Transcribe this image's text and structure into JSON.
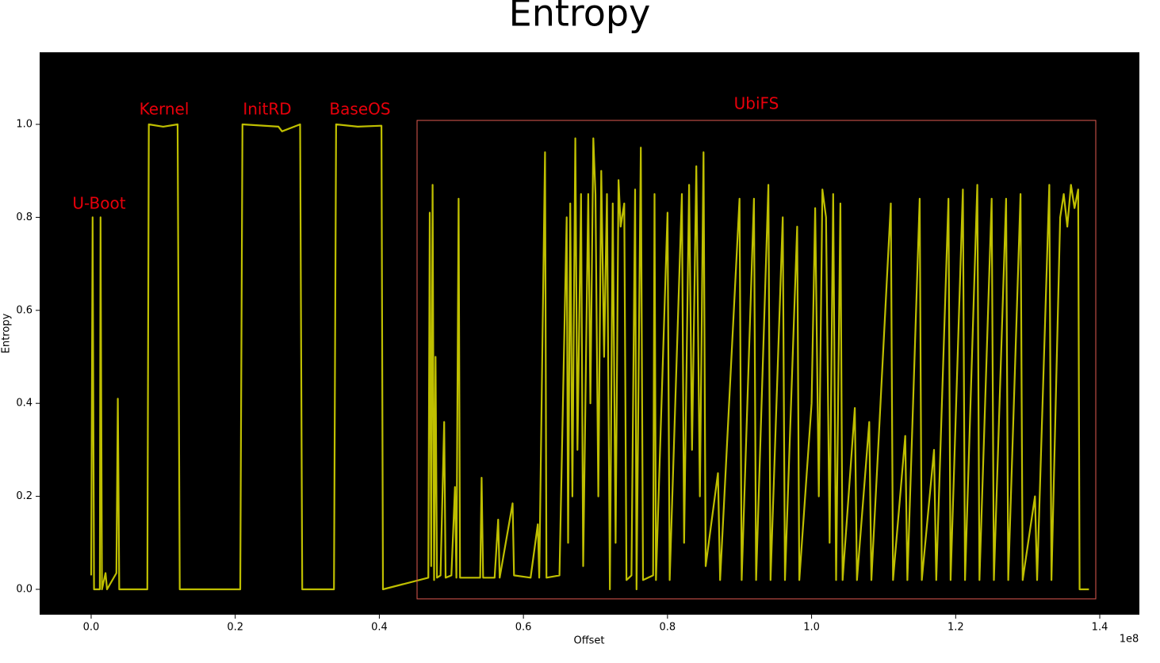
{
  "chart_data": {
    "type": "line",
    "title": "Entropy",
    "x_label": "Offset",
    "y_label": "Entropy",
    "x_offset_label": "1e8",
    "color": "#bfbf00",
    "background": "#000000",
    "annotation_color": "#e8000b",
    "annotations": [
      "U-Boot",
      "Kernel",
      "InitRD",
      "BaseOS",
      "UbiFS"
    ],
    "xlim": [
      -0.0715,
      1.455
    ],
    "ylim": [
      -0.0545,
      1.155
    ],
    "xticks": [
      {
        "value": 0,
        "label": "0.0"
      },
      0.2,
      0.4,
      0.6,
      0.8,
      {
        "value": 1,
        "label": "1.0"
      },
      1.2,
      1.4
    ],
    "yticks": [
      {
        "value": 0,
        "label": "0.0"
      },
      0.2,
      0.4,
      0.6,
      0.8,
      {
        "value": 1,
        "label": "1.0"
      }
    ],
    "x": [
      0,
      0.002,
      0.004,
      0.012,
      0.013,
      0.015,
      0.02,
      0.022,
      0.035,
      0.037,
      0.039,
      0.078,
      0.08,
      0.1,
      0.12,
      0.123,
      0.207,
      0.21,
      0.26,
      0.265,
      0.29,
      0.293,
      0.337,
      0.34,
      0.37,
      0.403,
      0.405,
      0.468,
      0.47,
      0.472,
      0.474,
      0.476,
      0.478,
      0.48,
      0.485,
      0.49,
      0.492,
      0.5,
      0.505,
      0.507,
      0.51,
      0.512,
      0.54,
      0.542,
      0.544,
      0.56,
      0.565,
      0.567,
      0.585,
      0.587,
      0.61,
      0.62,
      0.622,
      0.63,
      0.632,
      0.65,
      0.66,
      0.662,
      0.665,
      0.668,
      0.672,
      0.675,
      0.68,
      0.683,
      0.69,
      0.693,
      0.697,
      0.7,
      0.704,
      0.708,
      0.712,
      0.716,
      0.72,
      0.724,
      0.728,
      0.732,
      0.735,
      0.74,
      0.743,
      0.75,
      0.755,
      0.757,
      0.763,
      0.766,
      0.78,
      0.782,
      0.784,
      0.8,
      0.803,
      0.82,
      0.823,
      0.83,
      0.834,
      0.84,
      0.845,
      0.85,
      0.853,
      0.87,
      0.873,
      0.9,
      0.903,
      0.92,
      0.923,
      0.94,
      0.943,
      0.96,
      0.963,
      0.98,
      0.983,
      1.0,
      1.005,
      1.01,
      1.015,
      1.02,
      1.025,
      1.03,
      1.034,
      1.04,
      1.043,
      1.06,
      1.063,
      1.08,
      1.083,
      1.11,
      1.113,
      1.13,
      1.133,
      1.15,
      1.153,
      1.17,
      1.173,
      1.19,
      1.193,
      1.21,
      1.213,
      1.23,
      1.233,
      1.25,
      1.253,
      1.27,
      1.273,
      1.29,
      1.293,
      1.31,
      1.313,
      1.33,
      1.333,
      1.345,
      1.35,
      1.355,
      1.36,
      1.365,
      1.37,
      1.372,
      1.385
    ],
    "values": [
      0.03,
      0.8,
      0,
      0,
      0.8,
      0,
      0.035,
      0,
      0.035,
      0.41,
      0,
      0,
      1.0,
      0.995,
      1.0,
      0,
      0,
      1.0,
      0.995,
      0.985,
      1.0,
      0,
      0,
      1.0,
      0.995,
      0.997,
      0,
      0.025,
      0.81,
      0.05,
      0.87,
      0.02,
      0.5,
      0.025,
      0.03,
      0.36,
      0.025,
      0.03,
      0.22,
      0.025,
      0.84,
      0.025,
      0.025,
      0.24,
      0.025,
      0.025,
      0.15,
      0.025,
      0.185,
      0.03,
      0.025,
      0.14,
      0.025,
      0.94,
      0.025,
      0.03,
      0.8,
      0.1,
      0.83,
      0.2,
      0.97,
      0.3,
      0.85,
      0.05,
      0.85,
      0.4,
      0.97,
      0.85,
      0.2,
      0.9,
      0.5,
      0.85,
      0.0,
      0.83,
      0.1,
      0.88,
      0.78,
      0.83,
      0.02,
      0.03,
      0.86,
      0.0,
      0.95,
      0.02,
      0.03,
      0.85,
      0.02,
      0.81,
      0.02,
      0.85,
      0.1,
      0.87,
      0.3,
      0.91,
      0.2,
      0.94,
      0.05,
      0.25,
      0.02,
      0.84,
      0.02,
      0.84,
      0.02,
      0.87,
      0.02,
      0.8,
      0.02,
      0.78,
      0.02,
      0.4,
      0.82,
      0.2,
      0.86,
      0.8,
      0.1,
      0.85,
      0.02,
      0.83,
      0.02,
      0.39,
      0.02,
      0.36,
      0.02,
      0.83,
      0.02,
      0.33,
      0.02,
      0.84,
      0.02,
      0.3,
      0.02,
      0.84,
      0.02,
      0.86,
      0.02,
      0.87,
      0.02,
      0.84,
      0.02,
      0.84,
      0.02,
      0.85,
      0.02,
      0.2,
      0.02,
      0.87,
      0.02,
      0.8,
      0.85,
      0.78,
      0.87,
      0.82,
      0.86,
      0.0,
      0.0
    ]
  }
}
